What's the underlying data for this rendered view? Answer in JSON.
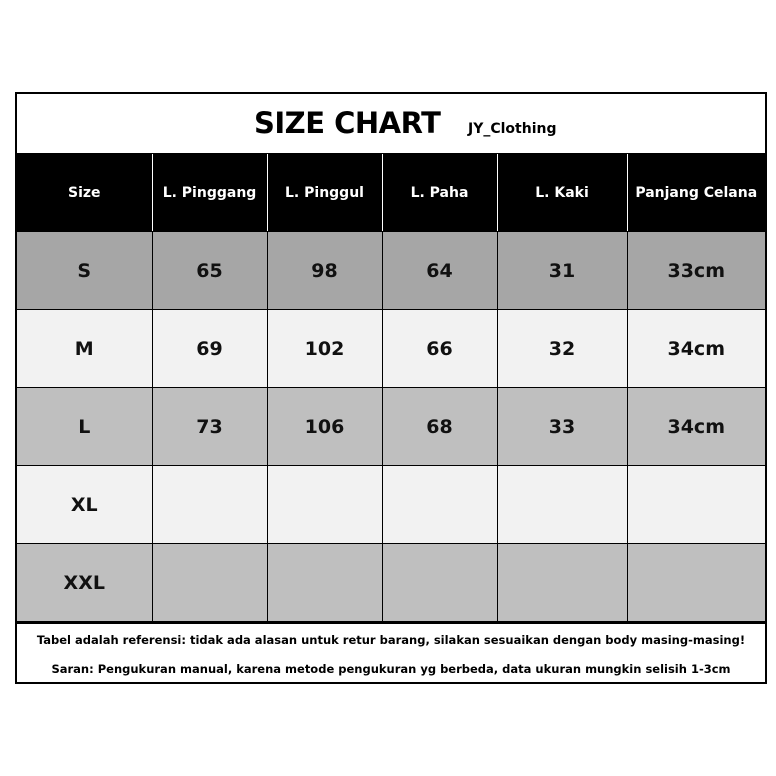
{
  "title": "SIZE CHART",
  "brand": "JY_Clothing",
  "headers": [
    "Size",
    "L. Pinggang",
    "L. Pinggul",
    "L. Paha",
    "L. Kaki",
    "Panjang Celana"
  ],
  "rows": [
    [
      "S",
      "65",
      "98",
      "64",
      "31",
      "33cm"
    ],
    [
      "M",
      "69",
      "102",
      "66",
      "32",
      "34cm"
    ],
    [
      "L",
      "73",
      "106",
      "68",
      "33",
      "34cm"
    ],
    [
      "XL",
      "",
      "",
      "",
      "",
      ""
    ],
    [
      "XXL",
      "",
      "",
      "",
      "",
      ""
    ]
  ],
  "notes": [
    "Tabel adalah referensi: tidak ada alasan untuk retur barang, silakan sesuaikan dengan body masing-masing!",
    "Saran: Pengukuran manual, karena metode pengukuran yg berbeda, data ukuran mungkin selisih 1-3cm"
  ],
  "colors": {
    "header_bg": "#000000",
    "row_dark": "#a6a6a6",
    "row_mid": "#bfbfbf",
    "row_light": "#f2f2f2"
  }
}
